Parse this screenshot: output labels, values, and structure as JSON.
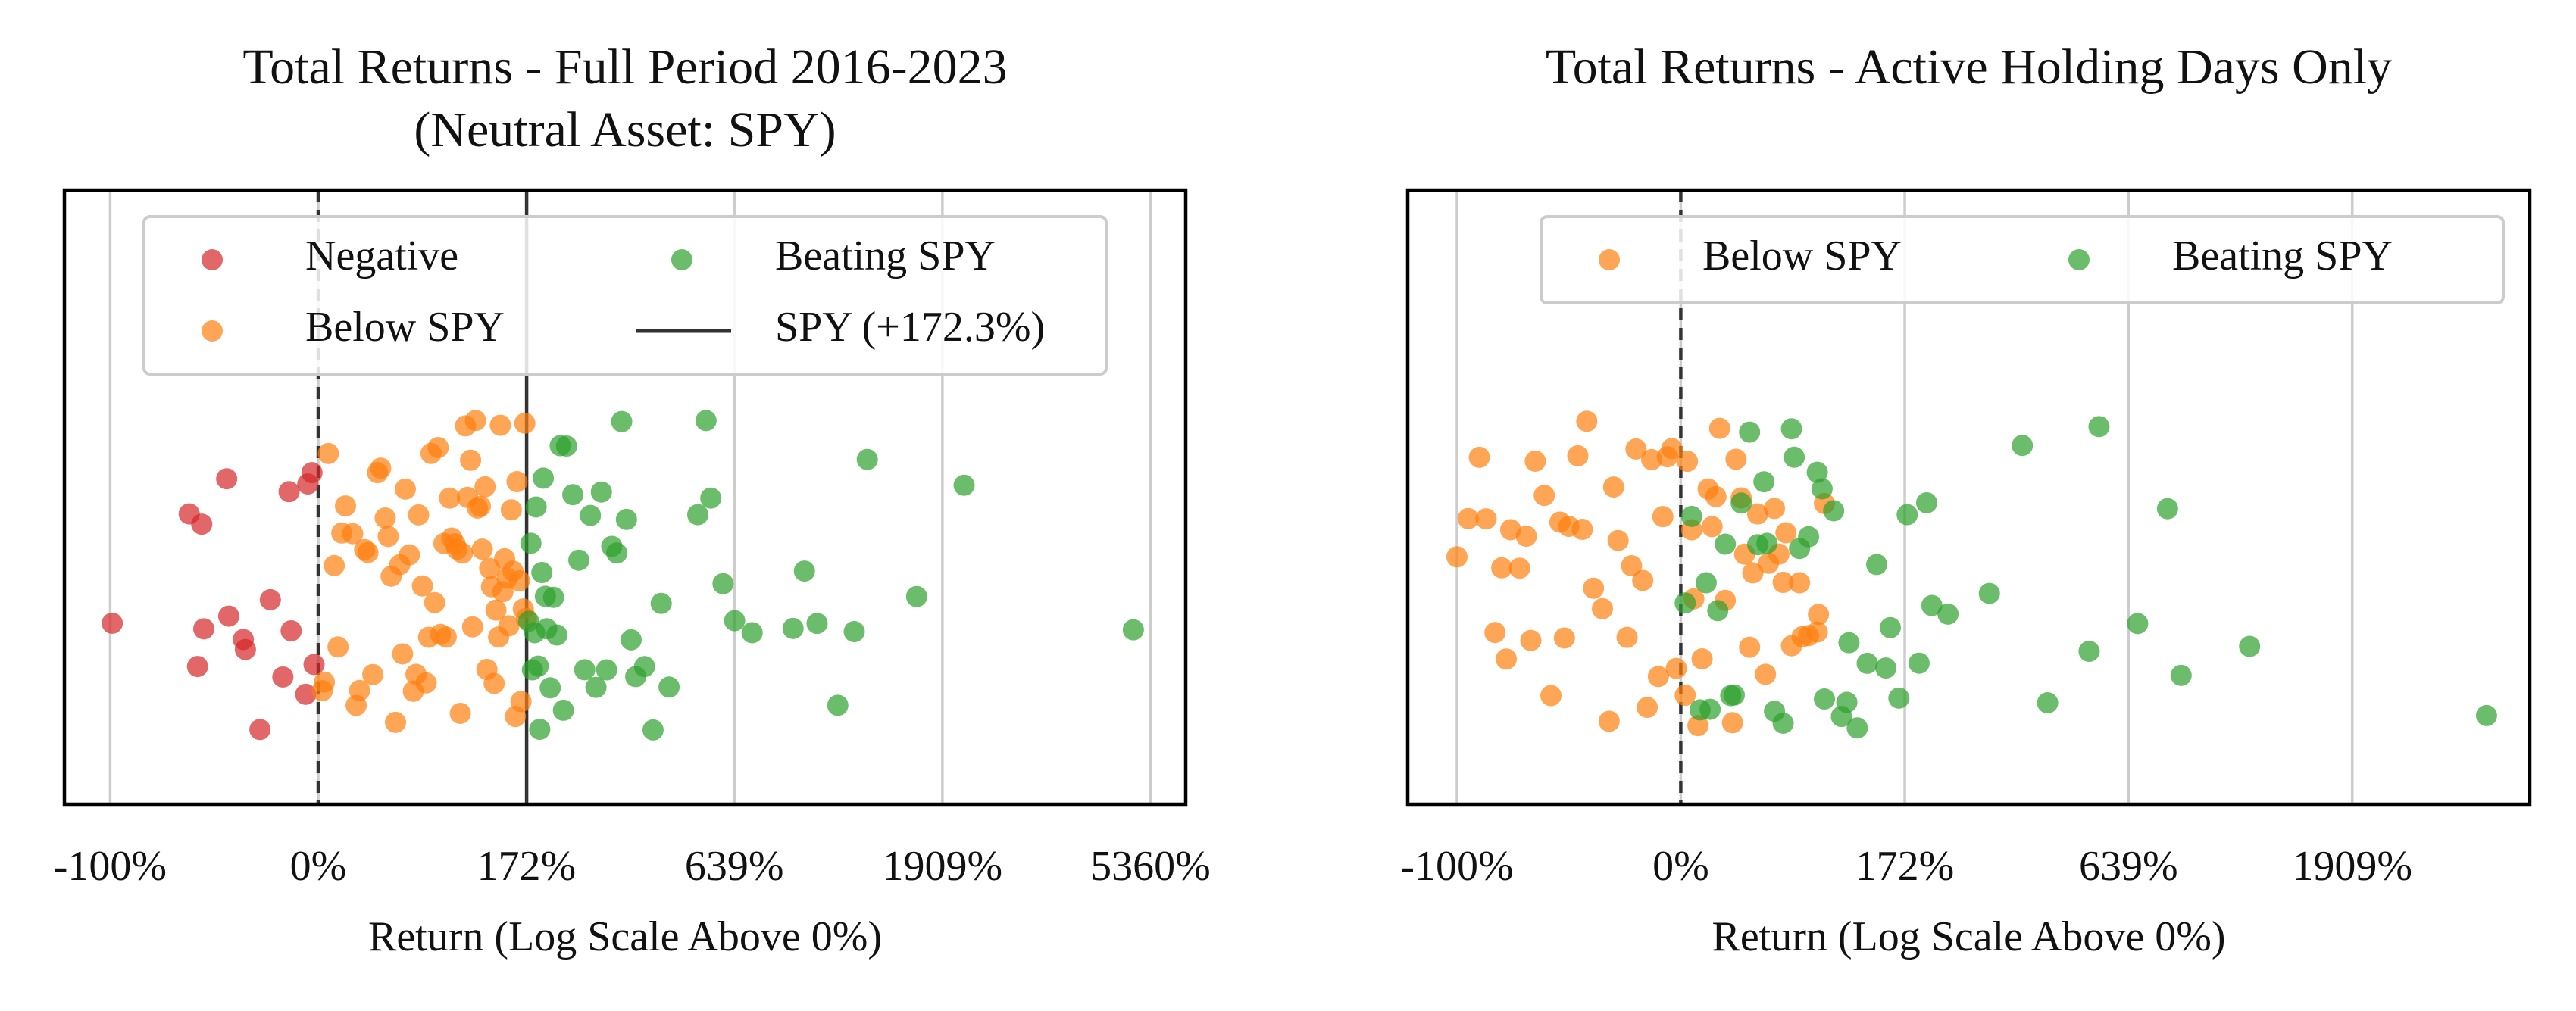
{
  "chart_data": [
    {
      "type": "strip",
      "title": [
        "Total Returns - Full Period 2016-2023",
        "(Neutral Asset: SPY)"
      ],
      "xlabel": "Return (Log Scale Above 0%)",
      "xscale": "log1p",
      "xlim": [
        -122,
        6370
      ],
      "xticks": [
        {
          "value": -100,
          "label": "-100%"
        },
        {
          "value": 0,
          "label": "0%"
        },
        {
          "value": 172,
          "label": "172%"
        },
        {
          "value": 639,
          "label": "639%"
        },
        {
          "value": 1909,
          "label": "1909%"
        },
        {
          "value": 5360,
          "label": "5360%"
        }
      ],
      "grid": true,
      "vline": {
        "value": 0,
        "dashed": true
      },
      "reference": {
        "name": "SPY (+172.3%)",
        "value": 172.3,
        "color": "#333333"
      },
      "legend": {
        "loc": "upper center",
        "ncol": 2
      },
      "series": [
        {
          "name": "Negative",
          "color": "#d62728",
          "values": [
            -99,
            -62,
            -43,
            -28,
            -13,
            -55,
            -3,
            -6,
            -36,
            -17,
            -35,
            -56,
            -58,
            -44,
            -23,
            -14,
            -5,
            -2
          ]
        },
        {
          "name": "Below SPY",
          "color": "#ff7f0e",
          "values": [
            2,
            3,
            5,
            8,
            10,
            12,
            14,
            18,
            20,
            22,
            25,
            27,
            30,
            33,
            35,
            38,
            40,
            42,
            45,
            48,
            50,
            52,
            55,
            58,
            60,
            62,
            65,
            68,
            70,
            72,
            75,
            78,
            80,
            83,
            85,
            88,
            90,
            93,
            95,
            98,
            100,
            103,
            105,
            108,
            110,
            113,
            115,
            118,
            120,
            123,
            125,
            128,
            130,
            133,
            135,
            138,
            140,
            143,
            145,
            148,
            150,
            153,
            155,
            158,
            160,
            163,
            165,
            168,
            170,
            172
          ]
        },
        {
          "name": "Beating SPY",
          "color": "#2ca02c",
          "values": [
            175,
            178,
            180,
            183,
            185,
            188,
            190,
            193,
            195,
            198,
            200,
            205,
            210,
            215,
            220,
            225,
            230,
            240,
            250,
            260,
            270,
            280,
            290,
            300,
            310,
            320,
            330,
            340,
            350,
            360,
            380,
            400,
            420,
            440,
            520,
            545,
            560,
            600,
            640,
            705,
            880,
            935,
            1000,
            1115,
            1215,
            1300,
            1675,
            2130,
            4930
          ]
        }
      ]
    },
    {
      "type": "strip",
      "title": [
        "Total Returns - Active Holding Days Only"
      ],
      "xlabel": "Return (Log Scale Above 0%)",
      "xscale": "log1p",
      "xlim": [
        -122,
        4340
      ],
      "xticks": [
        {
          "value": -100,
          "label": "-100%"
        },
        {
          "value": 0,
          "label": "0%"
        },
        {
          "value": 172,
          "label": "172%"
        },
        {
          "value": 639,
          "label": "639%"
        },
        {
          "value": 1909,
          "label": "1909%"
        }
      ],
      "grid": true,
      "vline": {
        "value": 0,
        "dashed": true
      },
      "legend": {
        "loc": "upper right",
        "ncol": 2
      },
      "series": [
        {
          "name": "Below SPY",
          "color": "#ff7f0e",
          "values": [
            -100,
            -87,
            -83,
            -76,
            -69,
            -61,
            -54,
            -46,
            -39,
            -32,
            -24,
            -17,
            -10,
            -2,
            -95,
            -80,
            -72,
            -65,
            -58,
            -50,
            -42,
            -35,
            -28,
            -20,
            -13,
            -6,
            -90,
            -78,
            -67,
            -52,
            -44,
            -30,
            -22,
            -15,
            -8,
            -4,
            2,
            5,
            8,
            13,
            17,
            22,
            26,
            31,
            36,
            41,
            46,
            52,
            58,
            64,
            70,
            77,
            84,
            90,
            3,
            10,
            19,
            28,
            38,
            48,
            60,
            72,
            85,
            6,
            15,
            33,
            55
          ]
        },
        {
          "name": "Beating SPY",
          "color": "#2ca02c",
          "values": [
            2,
            5,
            9,
            14,
            18,
            22,
            27,
            31,
            36,
            41,
            47,
            52,
            58,
            64,
            70,
            77,
            84,
            90,
            98,
            105,
            112,
            120,
            130,
            140,
            155,
            165,
            175,
            190,
            207,
            230,
            297,
            360,
            415,
            520,
            548,
            670,
            780,
            835,
            1170,
            3560,
            12,
            25,
            45,
            66,
            88,
            110,
            150,
            200
          ]
        }
      ]
    }
  ]
}
